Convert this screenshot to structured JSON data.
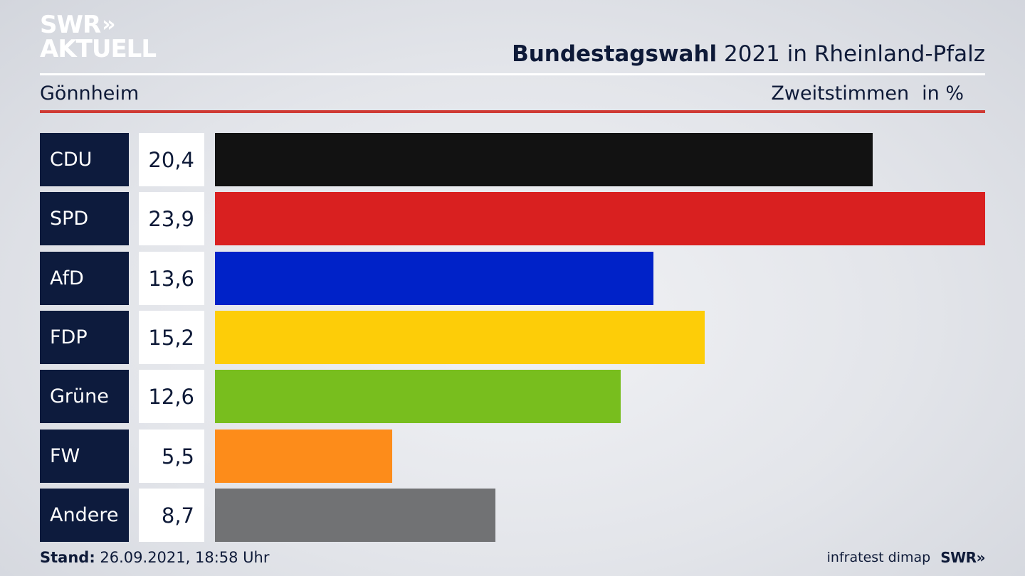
{
  "logo": {
    "line1": "SWR",
    "chevrons": "»",
    "line2": "AKTUELL"
  },
  "header": {
    "title_bold": "Bundestagswahl",
    "title_rest": " 2021 in Rheinland-Pfalz",
    "region": "Gönnheim",
    "measure": "Zweitstimmen",
    "unit": "in %"
  },
  "chart_data": {
    "type": "bar",
    "orientation": "horizontal",
    "categories": [
      "CDU",
      "SPD",
      "AfD",
      "FDP",
      "Grüne",
      "FW",
      "Andere"
    ],
    "values": [
      20.4,
      23.9,
      13.6,
      15.2,
      12.6,
      5.5,
      8.7
    ],
    "value_labels": [
      "20,4",
      "23,9",
      "13,6",
      "15,2",
      "12,6",
      "5,5",
      "8,7"
    ],
    "colors": [
      "#121212",
      "#d92020",
      "#0022c8",
      "#fdcd08",
      "#78be1e",
      "#fd8c1a",
      "#717274"
    ],
    "xlim": [
      0,
      23.9
    ],
    "grid": false,
    "legend": "none"
  },
  "footer": {
    "stand_label": "Stand:",
    "stand_value": " 26.09.2021, 18:58 Uhr",
    "source": "infratest dimap",
    "brand": "SWR»"
  }
}
